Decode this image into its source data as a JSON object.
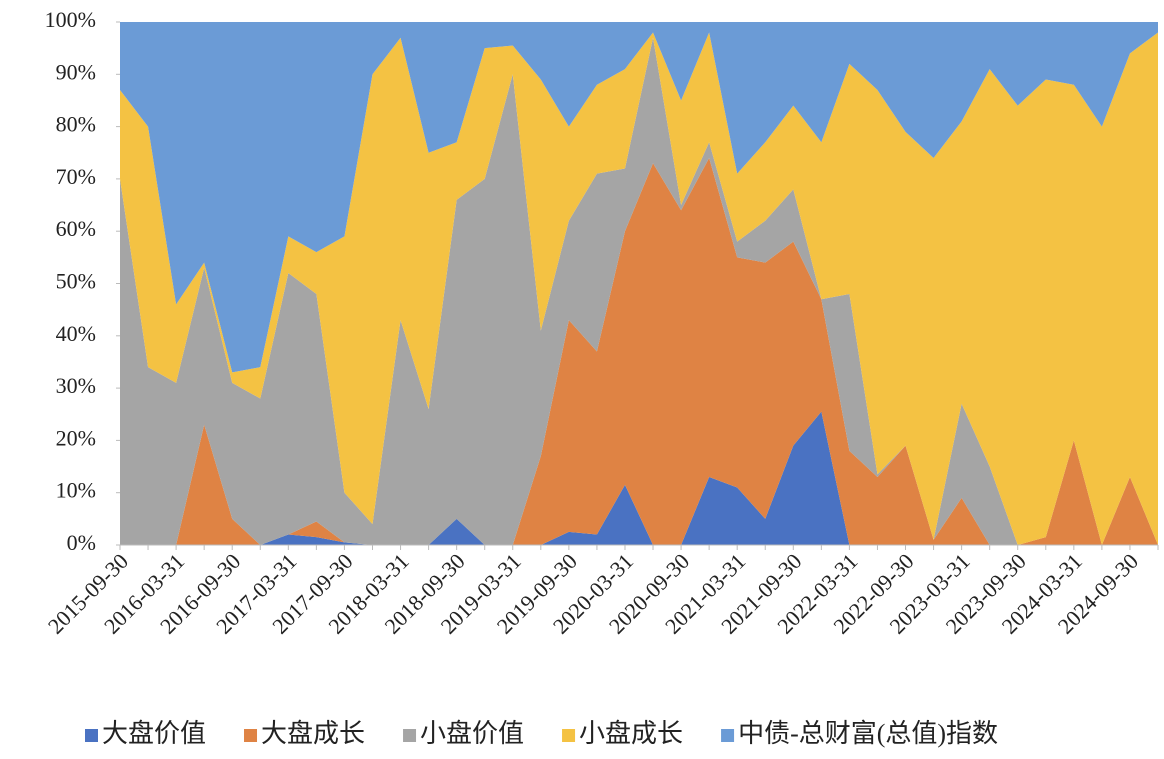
{
  "chart_data": {
    "type": "stacked_area",
    "categories": [
      "2015-09-30",
      null,
      "2016-03-31",
      null,
      "2016-09-30",
      null,
      "2017-03-31",
      null,
      "2017-09-30",
      null,
      "2018-03-31",
      null,
      "2018-09-30",
      null,
      "2019-03-31",
      null,
      "2019-09-30",
      null,
      "2020-03-31",
      null,
      "2020-09-30",
      null,
      "2021-03-31",
      null,
      "2021-09-30",
      null,
      "2022-03-31",
      null,
      "2022-09-30",
      null,
      "2023-03-31",
      null,
      "2023-09-30",
      null,
      "2024-03-31",
      null,
      "2024-09-30",
      null
    ],
    "series": [
      {
        "name": "大盘价值",
        "color": "#4a72c2",
        "values": [
          0,
          0,
          0,
          0,
          0,
          0,
          2,
          1.5,
          0.5,
          0,
          0,
          0,
          5,
          0,
          0,
          0,
          2.5,
          2,
          11.5,
          0,
          0,
          13,
          11,
          5,
          19,
          25.5,
          0,
          0,
          0,
          0,
          0,
          0,
          0,
          0,
          0,
          0,
          0,
          0
        ]
      },
      {
        "name": "大盘成长",
        "color": "#df8344",
        "values": [
          0,
          0,
          0,
          23,
          5,
          0,
          0,
          3,
          0,
          0,
          0,
          0,
          0,
          0,
          0,
          17,
          40.5,
          35,
          48.5,
          73,
          64,
          61,
          44,
          49,
          39,
          21.5,
          18,
          13,
          19,
          1,
          9,
          0,
          0,
          1.5,
          20,
          0,
          13,
          0
        ]
      },
      {
        "name": "小盘价值",
        "color": "#a5a5a5",
        "values": [
          70,
          34,
          31,
          30,
          26,
          28,
          50,
          43.5,
          9.5,
          4,
          43,
          26,
          61,
          70,
          90,
          24,
          19,
          34,
          12,
          24,
          1,
          3,
          3,
          8,
          10,
          0,
          30,
          0.5,
          0,
          0,
          18,
          15,
          0,
          0,
          0,
          0,
          0,
          0
        ]
      },
      {
        "name": "小盘成长",
        "color": "#f4c243",
        "values": [
          17,
          46,
          15,
          1,
          2,
          6,
          7,
          8,
          49,
          86,
          54,
          49,
          11,
          25,
          5.5,
          48,
          18,
          17,
          19,
          1,
          20,
          21,
          13,
          15,
          16,
          30,
          44,
          73.5,
          60,
          73,
          54,
          76,
          84,
          87.5,
          68,
          80,
          81,
          98
        ]
      },
      {
        "name": "中债-总财富(总值)指数",
        "color": "#6b9bd6",
        "values": [
          13,
          20,
          54,
          46,
          67,
          66,
          41,
          44,
          41,
          10,
          3,
          25,
          23,
          5,
          4.5,
          11,
          20,
          12,
          9,
          2,
          15,
          2,
          29,
          23,
          16,
          23,
          8,
          13,
          21,
          26,
          19,
          9,
          16,
          11,
          12,
          20,
          6,
          2
        ]
      }
    ],
    "ylim": [
      0,
      100
    ],
    "yticks": [
      {
        "value": 0,
        "label": "0%"
      },
      {
        "value": 10,
        "label": "10%"
      },
      {
        "value": 20,
        "label": "20%"
      },
      {
        "value": 30,
        "label": "30%"
      },
      {
        "value": 40,
        "label": "40%"
      },
      {
        "value": 50,
        "label": "50%"
      },
      {
        "value": 60,
        "label": "60%"
      },
      {
        "value": 70,
        "label": "70%"
      },
      {
        "value": 80,
        "label": "80%"
      },
      {
        "value": 90,
        "label": "90%"
      },
      {
        "value": 100,
        "label": "100%"
      }
    ],
    "legend": "bottom"
  }
}
